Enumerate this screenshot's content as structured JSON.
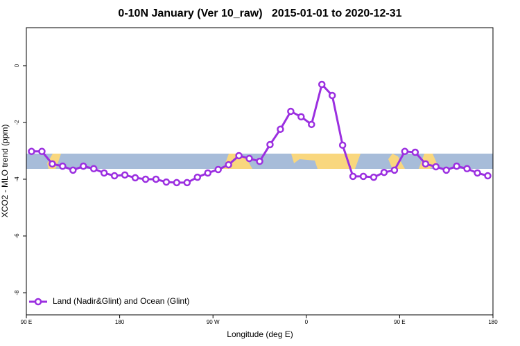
{
  "chart_data": {
    "type": "line",
    "title": "0-10N January (Ver 10_raw)   2015-01-01 to 2020-12-31",
    "xlabel": "Longitude (deg E)",
    "ylabel": "XCO2 - MLO trend (ppm)",
    "x": [
      95,
      105,
      115,
      125,
      135,
      145,
      155,
      165,
      175,
      185,
      195,
      205,
      215,
      225,
      235,
      245,
      255,
      265,
      275,
      285,
      295,
      305,
      315,
      325,
      335,
      345,
      355,
      365,
      375,
      385,
      395,
      405,
      415,
      425,
      435,
      445,
      455,
      465,
      475,
      485,
      495,
      505,
      515,
      525,
      535
    ],
    "series": [
      {
        "name": "Land (Nadir&Glint) and Ocean (Glint)",
        "color": "#9b2fe0",
        "values": [
          -3.02,
          -3.02,
          -3.46,
          -3.54,
          -3.68,
          -3.54,
          -3.63,
          -3.78,
          -3.88,
          -3.85,
          -3.95,
          -4.0,
          -4.0,
          -4.1,
          -4.12,
          -4.12,
          -3.93,
          -3.78,
          -3.66,
          -3.49,
          -3.17,
          -3.27,
          -3.37,
          -2.78,
          -2.24,
          -1.61,
          -1.8,
          -2.07,
          -0.66,
          -1.05,
          -2.8,
          -3.9,
          -3.9,
          -3.93,
          -3.76,
          -3.68,
          -3.02,
          -3.05,
          -3.46,
          -3.56,
          -3.68,
          -3.54,
          -3.63,
          -3.78,
          -3.88
        ]
      }
    ],
    "xlim": [
      90,
      540
    ],
    "xticks": [
      {
        "value": 90,
        "label": "90 E"
      },
      {
        "value": 180,
        "label": "180"
      },
      {
        "value": 270,
        "label": "90 W"
      },
      {
        "value": 360,
        "label": "0"
      },
      {
        "value": 450,
        "label": "90 E"
      },
      {
        "value": 540,
        "label": "180"
      }
    ],
    "ylim": [
      -8.78,
      1.34
    ],
    "yticks": [
      0,
      -2,
      -4,
      -6,
      -8
    ],
    "legend": "bottom-left"
  }
}
